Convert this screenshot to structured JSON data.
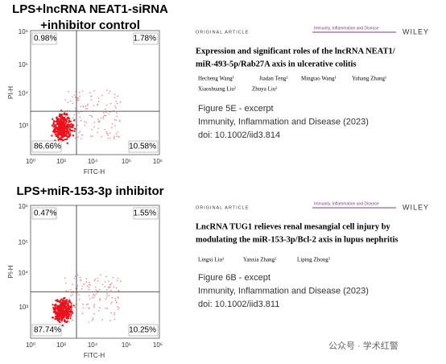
{
  "plots": [
    {
      "title_lines": [
        "LPS+lncRNA NEAT1-siRNA",
        "+inhibitor control"
      ],
      "y_label": "PI-H",
      "x_label": "FITC-H",
      "y_ticks": [
        "10⁶",
        "10⁵",
        "10⁴",
        "10³"
      ],
      "x_ticks": [
        "10⁰",
        "10³",
        "10⁴",
        "10⁵",
        "10⁶"
      ],
      "quadrants": [
        "0.98%",
        "1.78%",
        "86.66%",
        "10.58%"
      ]
    },
    {
      "title_lines": [
        "LPS+miR-153-3p inhibitor"
      ],
      "y_label": "PI-H",
      "x_label": "FITC-H",
      "y_ticks": [
        "10⁶",
        "10⁵",
        "10⁴",
        "10³"
      ],
      "x_ticks": [
        "10⁰",
        "10³",
        "10⁴",
        "10⁵",
        "10⁶"
      ],
      "quadrants": [
        "0.47%",
        "1.55%",
        "87.74%",
        "10.25%"
      ]
    }
  ],
  "articles": [
    {
      "section": "ORIGINAL ARTICLE",
      "journal": "Immunity, Inflammation and Disease",
      "publisher": "WILEY",
      "title_lines": [
        "Expression and significant roles of the lncRNA NEAT1/",
        "miR-493-5p/Rab27A axis in ulcerative colitis"
      ],
      "authors": [
        "Hecheng Wang¹",
        "Jiadan Teng²",
        "Mingtao Wang¹",
        "Yuhang Zhang¹",
        "Xiaoshuang Liu²",
        "Zhuya Liu²"
      ],
      "caption": [
        "Figure 5E - excerpt",
        "Immunity, Inflammation and Disease (2023)",
        "doi: 10.1002/iid3.814"
      ]
    },
    {
      "section": "ORIGINAL ARTICLE",
      "journal": "Immunity, Inflammation and Disease",
      "publisher": "WILEY",
      "title_lines": [
        "LncRNA TUG1 relieves renal mesangial cell injury by",
        "modulating the miR-153-3p/Bcl-2 axis in lupus nephritis"
      ],
      "authors": [
        "Lingxi Liu¹",
        "Yanxia Zhang²",
        "Liping Zhong³"
      ],
      "caption": [
        "Figure 6B - except",
        "Immunity, Inflammation and Disease (2023)",
        "doi: 10.1002/iid3.811"
      ]
    }
  ],
  "watermark": "公众号 · 学术红警"
}
